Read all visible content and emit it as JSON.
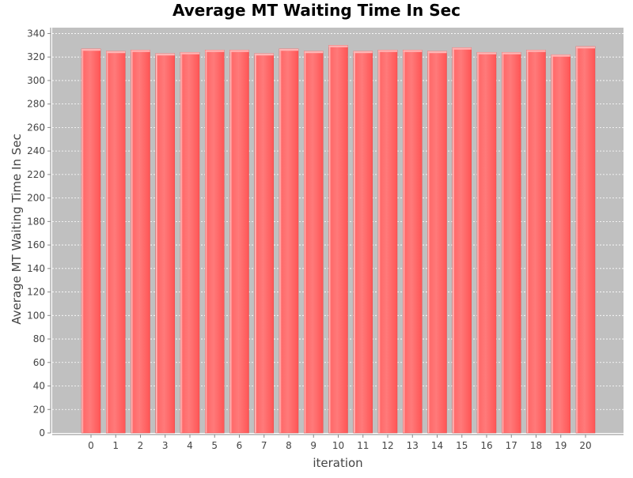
{
  "chart_data": {
    "type": "bar",
    "title": "Average MT Waiting Time In Sec",
    "xlabel": "iteration",
    "ylabel": "Average MT Waiting Time In Sec",
    "categories": [
      "0",
      "1",
      "2",
      "3",
      "4",
      "5",
      "6",
      "7",
      "8",
      "9",
      "10",
      "11",
      "12",
      "13",
      "14",
      "15",
      "16",
      "17",
      "18",
      "19",
      "20"
    ],
    "values": [
      327,
      325,
      326,
      323,
      324,
      326,
      326,
      323,
      327,
      325,
      330,
      325,
      326,
      326,
      325,
      328,
      324,
      324,
      326,
      322,
      329
    ],
    "ylim": [
      0,
      345
    ],
    "yticks": [
      0,
      20,
      40,
      60,
      80,
      100,
      120,
      140,
      160,
      180,
      200,
      220,
      240,
      260,
      280,
      300,
      320,
      340
    ],
    "grid": true,
    "legend": "none",
    "colors": {
      "plot_background": "#c0c0c0",
      "bar": "#ff5f5f",
      "bar_highlight": "#ff9a9a",
      "grid": "#ffffff"
    }
  }
}
